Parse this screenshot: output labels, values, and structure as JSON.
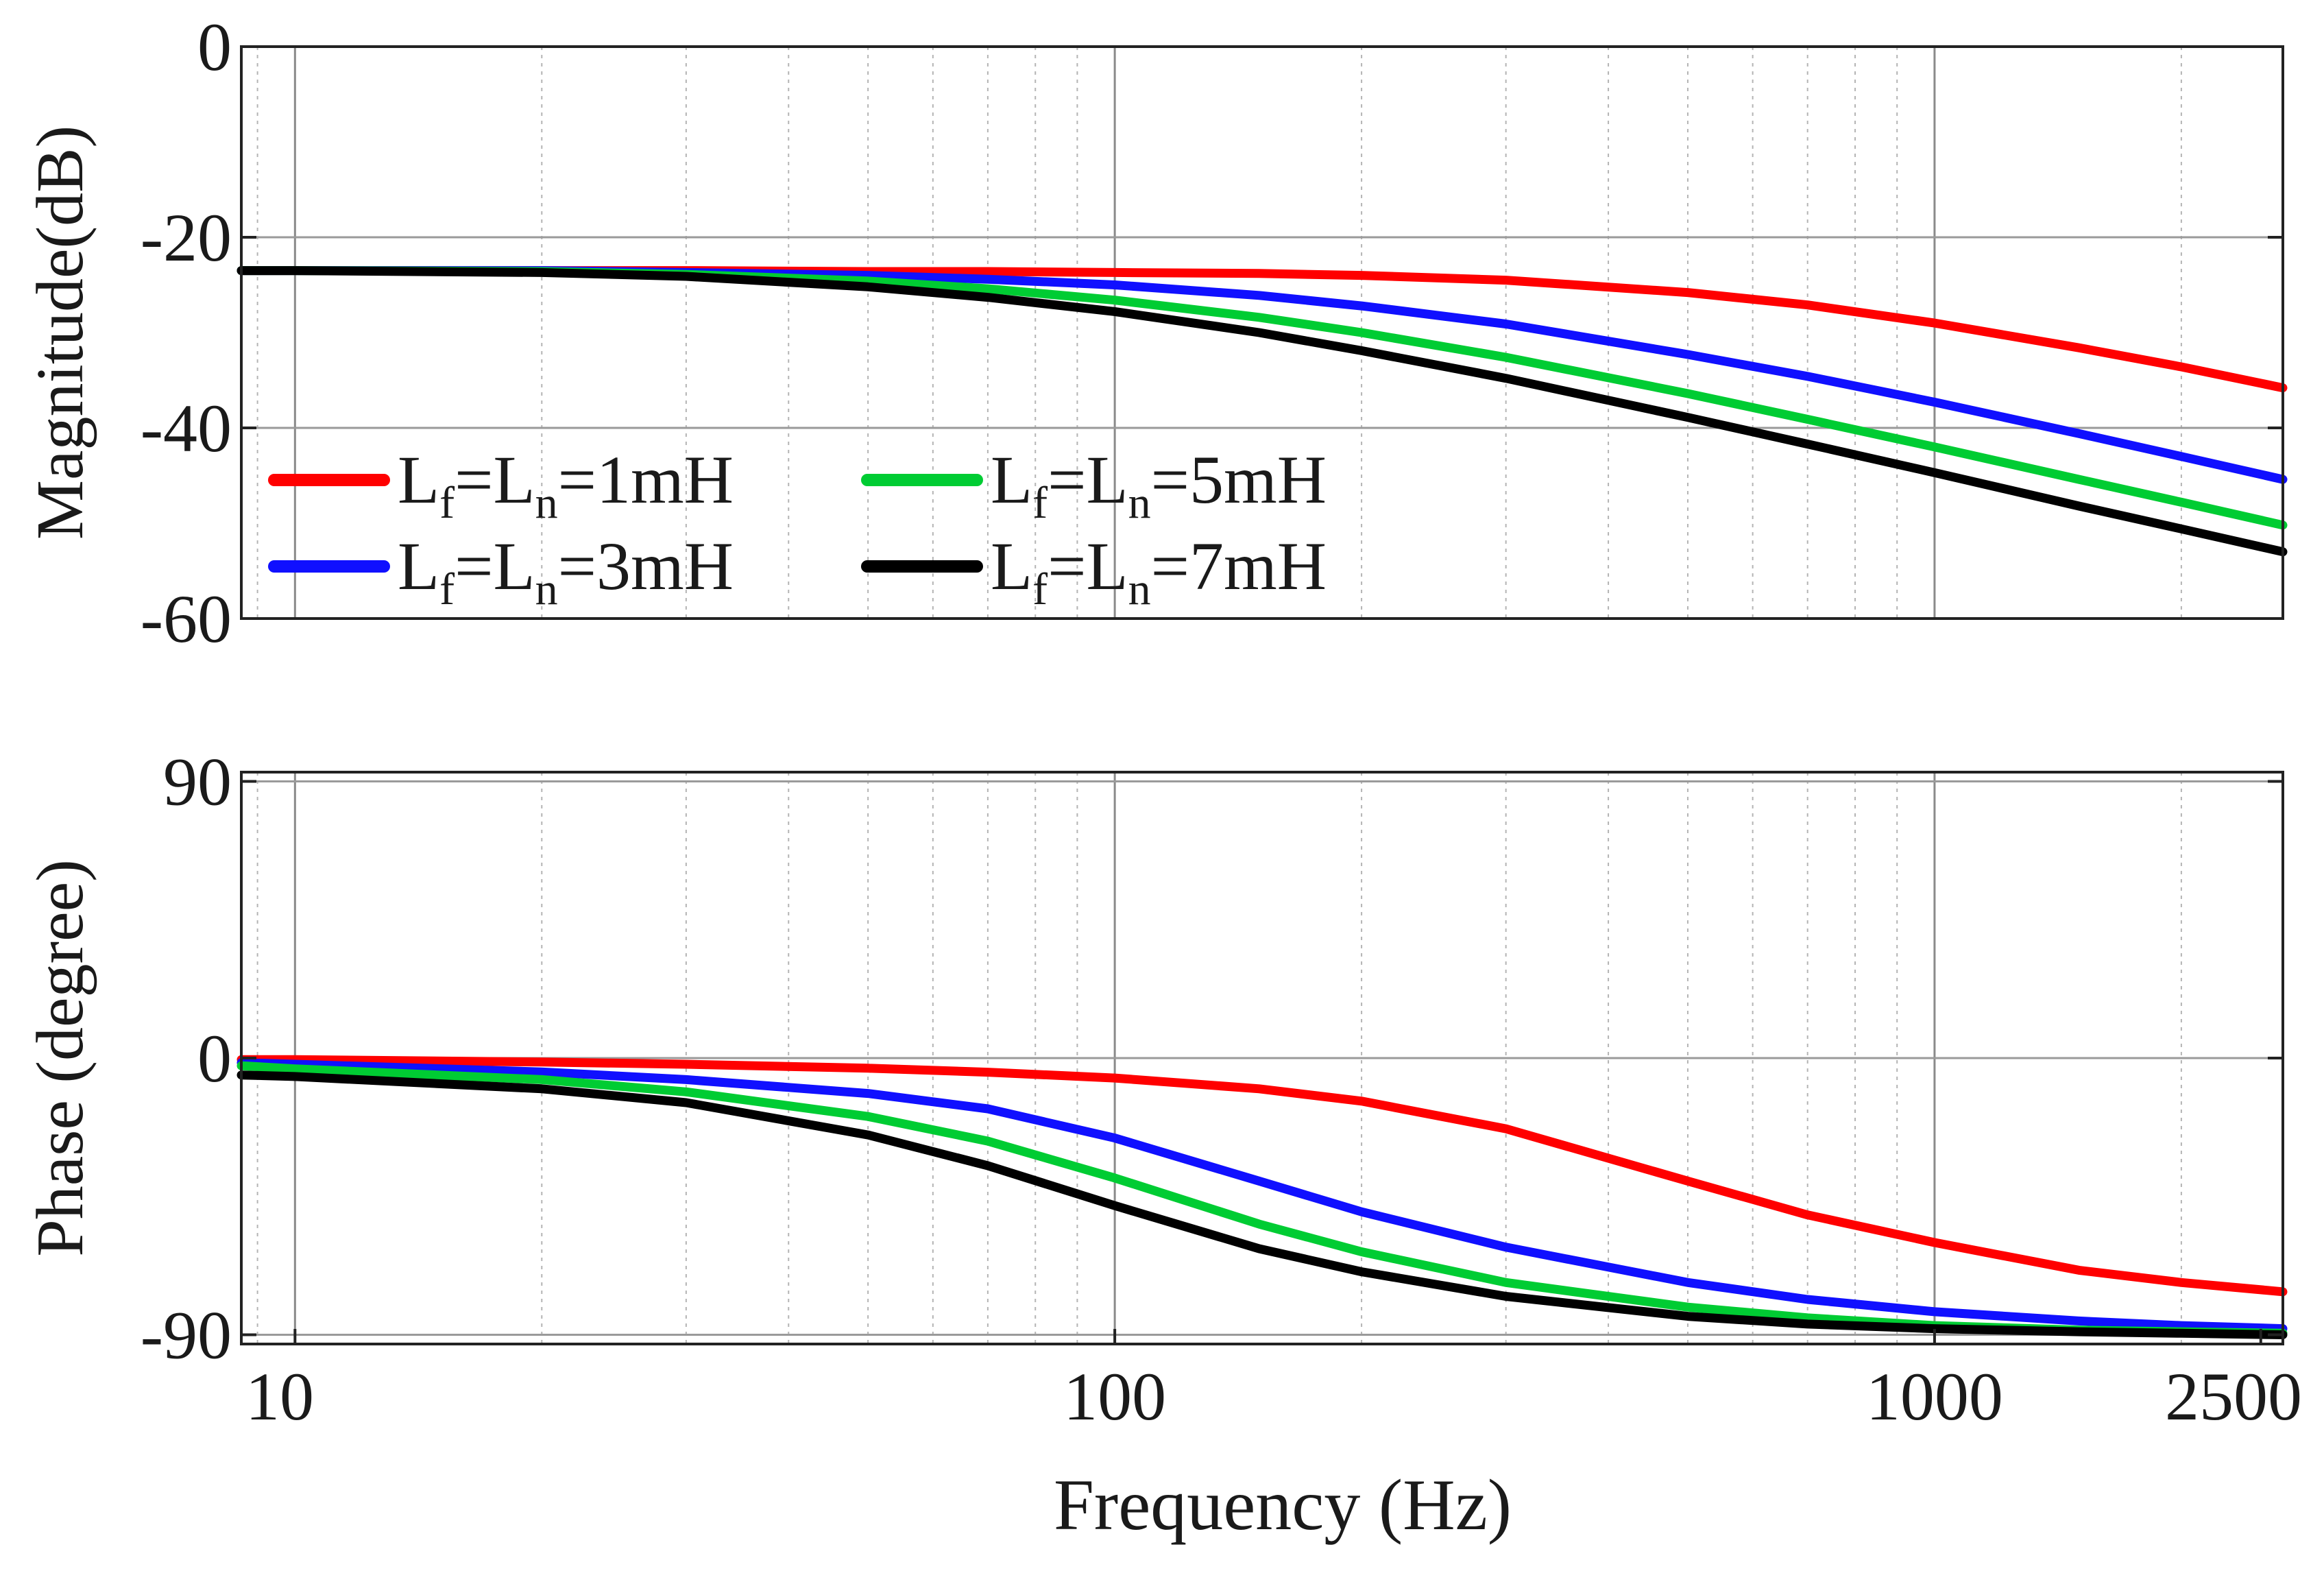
{
  "chart_data": [
    {
      "type": "line",
      "ylabel": "Magnitude(dB)",
      "xscale": "log",
      "xlim": [
        8.6,
        2660
      ],
      "ylim": [
        -60,
        0
      ],
      "yticks": [
        0,
        -20,
        -40,
        -60
      ],
      "ytick_labels": [
        "0",
        "-20",
        "-40",
        "-60"
      ],
      "grid": true,
      "legend_position": "lower-left",
      "x": [
        8.6,
        10,
        20,
        30,
        50,
        70,
        100,
        150,
        200,
        300,
        500,
        700,
        1000,
        1500,
        2000,
        2660
      ],
      "series": [
        {
          "name": "Lf=Ln=1mH",
          "color": "#ff0000",
          "values": [
            -23.5,
            -23.5,
            -23.5,
            -23.5,
            -23.6,
            -23.6,
            -23.7,
            -23.8,
            -24.0,
            -24.5,
            -25.8,
            -27.1,
            -29.0,
            -31.6,
            -33.6,
            -35.8
          ]
        },
        {
          "name": "Lf=Ln=3mH",
          "color": "#1010ff",
          "values": [
            -23.5,
            -23.5,
            -23.5,
            -23.7,
            -24.0,
            -24.4,
            -25.0,
            -26.1,
            -27.2,
            -29.1,
            -32.3,
            -34.6,
            -37.3,
            -40.6,
            -43.0,
            -45.4
          ]
        },
        {
          "name": "Lf=Ln=5mH",
          "color": "#00cc33",
          "values": [
            -23.5,
            -23.5,
            -23.6,
            -23.9,
            -24.6,
            -25.4,
            -26.6,
            -28.4,
            -30.0,
            -32.6,
            -36.4,
            -39.1,
            -42.0,
            -45.4,
            -47.8,
            -50.2
          ]
        },
        {
          "name": "Lf=Ln=7mH",
          "color": "#000000",
          "values": [
            -23.5,
            -23.5,
            -23.7,
            -24.1,
            -25.2,
            -26.3,
            -27.8,
            -30.0,
            -31.9,
            -34.8,
            -38.9,
            -41.7,
            -44.7,
            -48.2,
            -50.6,
            -53.0
          ]
        }
      ]
    },
    {
      "type": "line",
      "ylabel": "Phase (degree)",
      "xlabel": "Frequency (Hz)",
      "xscale": "log",
      "xlim": [
        8.6,
        2660
      ],
      "ylim": [
        -93,
        93
      ],
      "yticks": [
        90,
        0,
        -90
      ],
      "ytick_labels": [
        "90",
        "0",
        "-90"
      ],
      "xticks": [
        10,
        100,
        1000,
        2500
      ],
      "xtick_labels": [
        "10",
        "100",
        "1000",
        "2500"
      ],
      "grid": true,
      "x": [
        8.6,
        10,
        20,
        30,
        50,
        70,
        100,
        150,
        200,
        300,
        500,
        700,
        1000,
        1500,
        2000,
        2660
      ],
      "series": [
        {
          "name": "Lf=Ln=1mH",
          "color": "#ff0000",
          "values": [
            -0.5,
            -0.5,
            -1.3,
            -2.0,
            -3.3,
            -4.6,
            -6.5,
            -10.0,
            -14.0,
            -23.0,
            -40.0,
            -51.0,
            -60.0,
            -69.0,
            -73.0,
            -76.0
          ]
        },
        {
          "name": "Lf=Ln=3mH",
          "color": "#1010ff",
          "values": [
            -1.5,
            -2.0,
            -4.5,
            -7.0,
            -11.5,
            -16.5,
            -26.0,
            -40.0,
            -50.0,
            -61.5,
            -73.0,
            -78.5,
            -82.5,
            -85.5,
            -87.0,
            -88.0
          ]
        },
        {
          "name": "Lf=Ln=5mH",
          "color": "#00cc33",
          "values": [
            -2.5,
            -3.5,
            -7.0,
            -11.0,
            -19.0,
            -27.0,
            -39.0,
            -54.0,
            -63.0,
            -73.0,
            -81.0,
            -84.5,
            -87.0,
            -88.5,
            -89.0,
            -89.5
          ]
        },
        {
          "name": "Lf=Ln=7mH",
          "color": "#000000",
          "values": [
            -5.5,
            -6.0,
            -10.0,
            -14.5,
            -25.0,
            -35.0,
            -48.0,
            -62.0,
            -69.5,
            -77.5,
            -84.0,
            -86.5,
            -88.0,
            -89.0,
            -89.5,
            -90.0
          ]
        }
      ]
    }
  ]
}
